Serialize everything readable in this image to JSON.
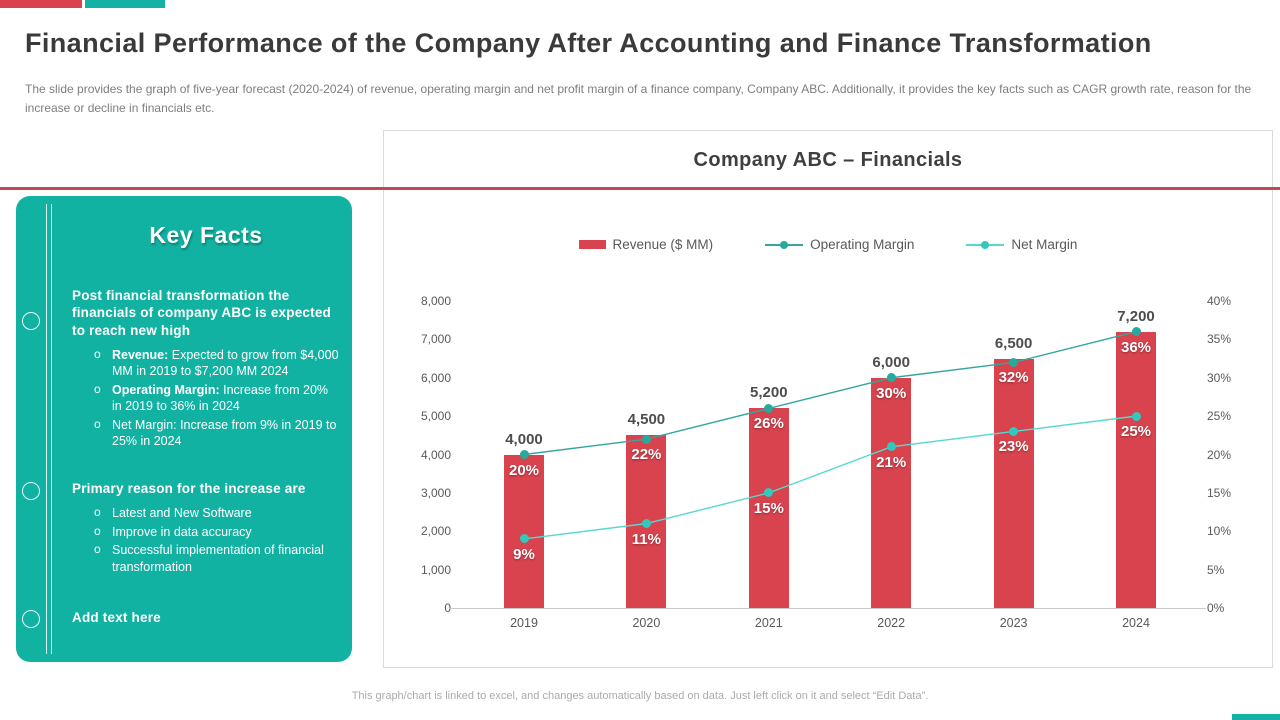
{
  "colors": {
    "red": "#D8434E",
    "teal": "#13B2A4",
    "divider_red": "#BC4B53",
    "operating_margin_line": "#33A79F",
    "operating_margin_dot": "#27A99C",
    "net_margin_line": "#55D9CF",
    "net_margin_dot": "#30C9BD",
    "axis_text": "#595959"
  },
  "header": {
    "title": "Financial Performance of the Company After Accounting and Finance Transformation",
    "subtitle": "The slide provides the graph of five-year forecast (2020-2024) of revenue, operating margin and net profit margin of a finance company, Company ABC.  Additionally, it provides the key facts such as CAGR growth rate, reason for the increase or decline in financials etc."
  },
  "key_facts": {
    "title": "Key Facts",
    "sections": [
      {
        "heading": "Post financial transformation the financials of company ABC is expected to reach new high",
        "bullets": [
          {
            "strong": "Revenue:",
            "text": " Expected to grow from $4,000 MM in 2019 to $7,200 MM 2024"
          },
          {
            "strong": "Operating Margin:",
            "text": " Increase from 20% in 2019 to 36% in 2024"
          },
          {
            "strong": "",
            "text": "Net Margin: Increase from 9% in 2019 to 25% in 2024"
          }
        ]
      },
      {
        "heading": "Primary reason for the increase are",
        "bullets": [
          {
            "strong": "",
            "text": "Latest and New Software"
          },
          {
            "strong": "",
            "text": "Improve  in data accuracy"
          },
          {
            "strong": "",
            "text": "Successful implementation of financial transformation"
          }
        ]
      },
      {
        "heading": "Add text here",
        "bullets": []
      }
    ]
  },
  "chart_data": {
    "type": "bar",
    "subtype": "combo-bar-line",
    "title": "Company ABC – Financials",
    "categories": [
      "2019",
      "2020",
      "2021",
      "2022",
      "2023",
      "2024"
    ],
    "series": [
      {
        "name": "Revenue ($ MM)",
        "kind": "bar",
        "axis": "left",
        "color": "#D8434E",
        "values": [
          4000,
          4500,
          5200,
          6000,
          6500,
          7200
        ],
        "labels": [
          "4,000",
          "4,500",
          "5,200",
          "6,000",
          "6,500",
          "7,200"
        ]
      },
      {
        "name": "Operating Margin",
        "kind": "line",
        "axis": "right",
        "color": "#33A79F",
        "dot_color": "#27A99C",
        "values": [
          20,
          22,
          26,
          30,
          32,
          36
        ],
        "labels": [
          "20%",
          "22%",
          "26%",
          "30%",
          "32%",
          "36%"
        ]
      },
      {
        "name": "Net Margin",
        "kind": "line",
        "axis": "right",
        "color": "#55D9CF",
        "dot_color": "#30C9BD",
        "values": [
          9,
          11,
          15,
          21,
          23,
          25
        ],
        "labels": [
          "9%",
          "11%",
          "15%",
          "21%",
          "23%",
          "25%"
        ]
      }
    ],
    "left_axis": {
      "min": 0,
      "max": 8000,
      "ticks": [
        "8,000",
        "7,000",
        "6,000",
        "5,000",
        "4,000",
        "3,000",
        "2,000",
        "1,000",
        "0"
      ]
    },
    "right_axis": {
      "min": 0,
      "max": 40,
      "ticks": [
        "40%",
        "35%",
        "30%",
        "25%",
        "20%",
        "15%",
        "10%",
        "5%",
        "0%"
      ]
    },
    "grid": false,
    "legend_position": "top"
  },
  "footer": {
    "note": "This graph/chart is linked to excel, and changes automatically based on data. Just left click on it and select “Edit Data”."
  }
}
